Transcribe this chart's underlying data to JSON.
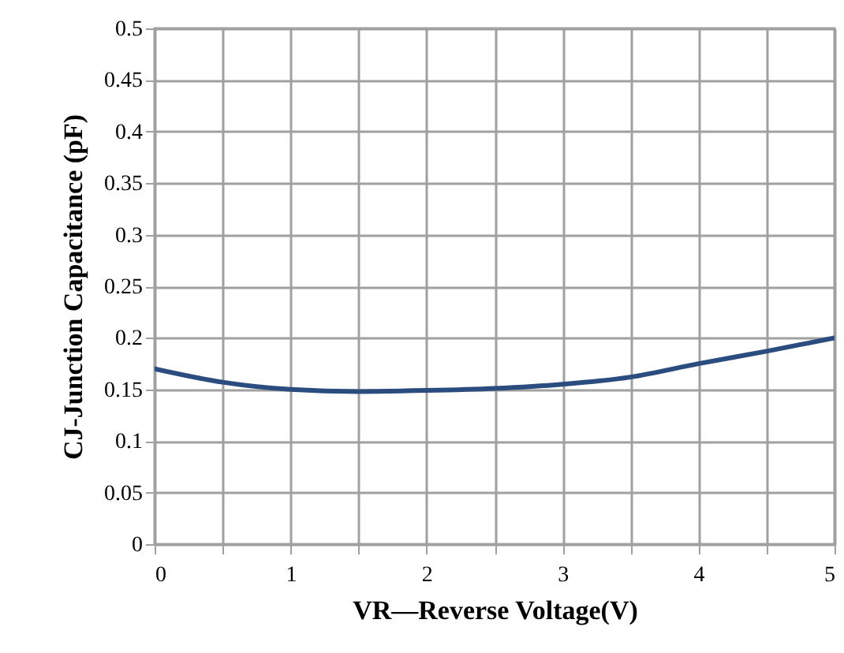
{
  "chart_data": {
    "type": "line",
    "xlabel": "VR—Reverse Voltage(V)",
    "ylabel": "CJ-Junction Capacitance (pF)",
    "x": [
      0,
      0.5,
      1,
      1.5,
      2,
      2.5,
      3,
      3.5,
      4,
      4.5,
      5
    ],
    "series": [
      {
        "color": "#2b4c7e",
        "values": [
          0.17,
          0.157,
          0.15,
          0.148,
          0.149,
          0.151,
          0.155,
          0.162,
          0.175,
          0.187,
          0.2
        ]
      }
    ],
    "xlim": [
      0,
      5
    ],
    "xticks": [
      0,
      {
        "value": 0.5,
        "label": null
      },
      1,
      {
        "value": 1.5,
        "label": null
      },
      2,
      {
        "value": 2.5,
        "label": null
      },
      3,
      {
        "value": 3.5,
        "label": null
      },
      4,
      {
        "value": 4.5,
        "label": null
      },
      5
    ],
    "ylim": [
      0,
      0.5
    ],
    "yticks": [
      0,
      0.05,
      0.1,
      0.15,
      0.2,
      0.25,
      0.3,
      0.35,
      0.4,
      0.45,
      0.5
    ],
    "grid": true,
    "marker": "none",
    "line_style": "solid"
  }
}
